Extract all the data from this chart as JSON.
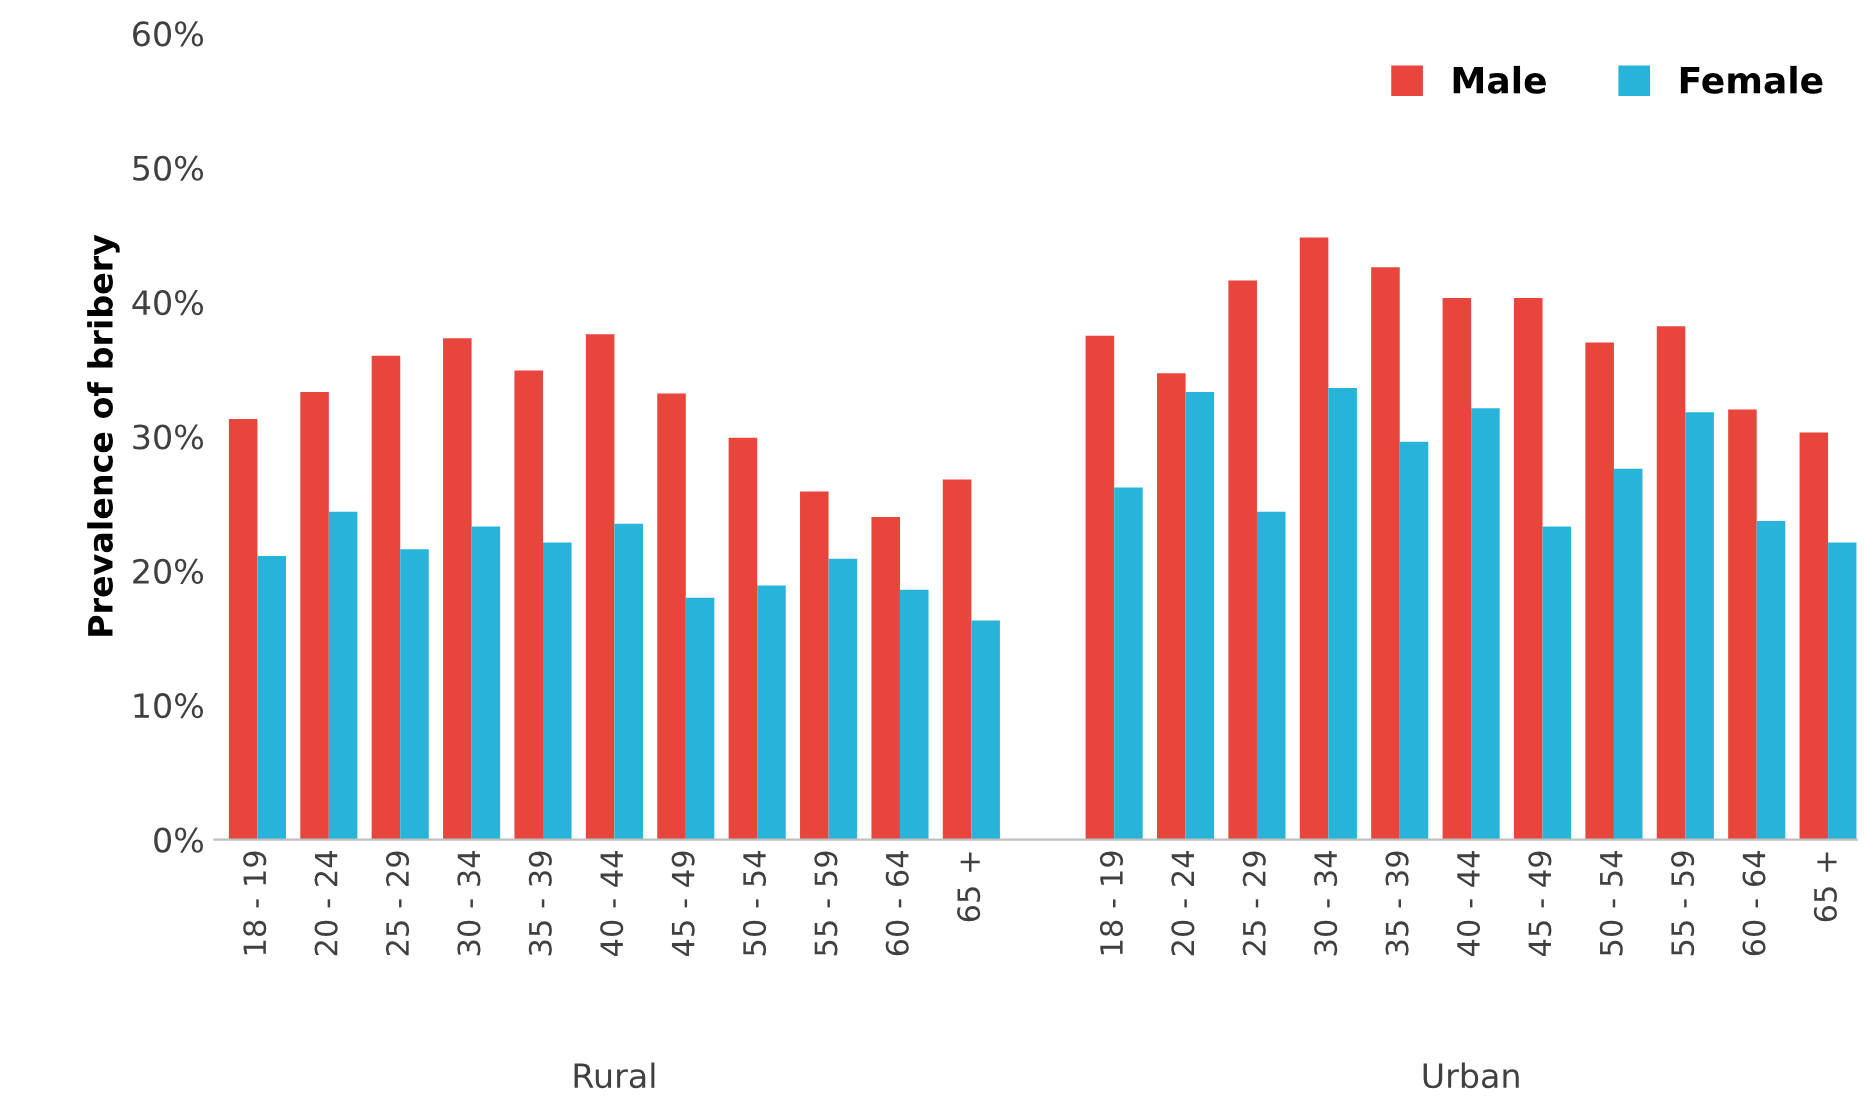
{
  "chart_data": {
    "type": "bar",
    "ylabel": "Prevalence of bribery",
    "categories": [
      "18 - 19",
      "20 - 24",
      "25 - 29",
      "30 - 34",
      "35 - 39",
      "40 - 44",
      "45 - 49",
      "50 - 54",
      "55 - 59",
      "60 - 64",
      "65 +",
      null,
      "18 - 19",
      "20 - 24",
      "25 - 29",
      "30 - 34",
      "35 - 39",
      "40 - 44",
      "45 - 49",
      "50 - 54",
      "55 - 59",
      "60 - 64",
      "65 +"
    ],
    "series": [
      {
        "name": "Male",
        "color": "#e8453c",
        "values": [
          31.3,
          33.3,
          36.0,
          37.3,
          34.9,
          37.6,
          33.2,
          29.9,
          25.9,
          24.0,
          26.8,
          null,
          37.5,
          34.7,
          41.6,
          44.8,
          42.6,
          40.3,
          40.3,
          37.0,
          38.2,
          32.0,
          30.3
        ]
      },
      {
        "name": "Female",
        "color": "#27b4d8",
        "values": [
          21.1,
          24.4,
          21.6,
          23.3,
          22.1,
          23.5,
          18.0,
          18.9,
          20.9,
          18.6,
          16.3,
          null,
          26.2,
          33.3,
          24.4,
          33.6,
          29.6,
          32.1,
          23.3,
          27.6,
          31.8,
          23.7,
          22.1
        ]
      }
    ],
    "ylim": [
      0,
      60
    ],
    "yticks": [
      {
        "value": 0,
        "label": "0%"
      },
      {
        "value": 10,
        "label": "10%"
      },
      {
        "value": 20,
        "label": "20%"
      },
      {
        "value": 30,
        "label": "30%"
      },
      {
        "value": 40,
        "label": "40%"
      },
      {
        "value": 50,
        "label": "50%"
      },
      {
        "value": 60,
        "label": "60%"
      }
    ],
    "legend": "top right",
    "annotations": [
      "Rural",
      "Urban"
    ]
  }
}
